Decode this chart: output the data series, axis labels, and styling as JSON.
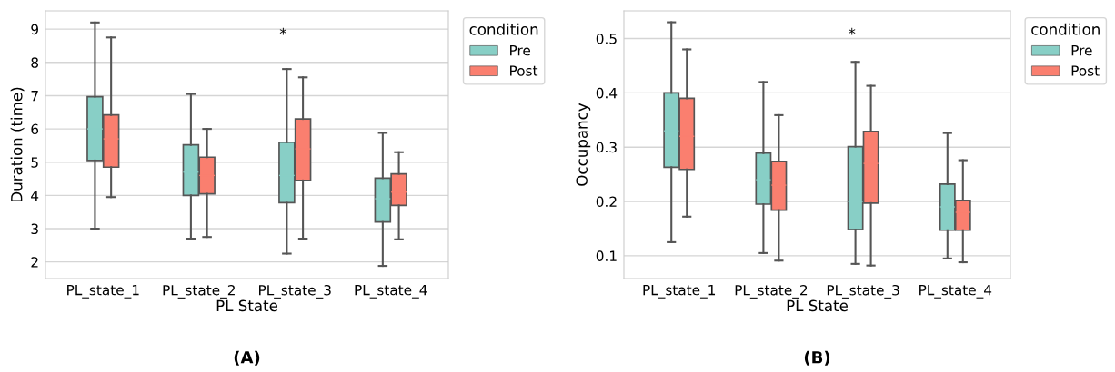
{
  "chart_data": [
    {
      "type": "box",
      "xlabel": "PL State",
      "ylabel": "Duration (time)",
      "categories": [
        "PL_state_1",
        "PL_state_2",
        "PL_state_3",
        "PL_state_4"
      ],
      "legend_title": "condition",
      "legend": "top right",
      "grid": "y",
      "ylim": [
        1.5,
        9.55
      ],
      "yticks": [
        2,
        3,
        4,
        5,
        6,
        7,
        8,
        9
      ],
      "series": [
        {
          "name": "Pre",
          "color": "#88cfc6",
          "boxes": [
            {
              "low": 3.0,
              "q1": 5.05,
              "median": 6.0,
              "q3": 6.97,
              "high": 9.2
            },
            {
              "low": 2.7,
              "q1": 4.0,
              "median": 4.7,
              "q3": 5.52,
              "high": 7.05
            },
            {
              "low": 2.25,
              "q1": 3.78,
              "median": 4.6,
              "q3": 5.6,
              "high": 7.8
            },
            {
              "low": 1.88,
              "q1": 3.2,
              "median": 3.9,
              "q3": 4.52,
              "high": 5.88
            }
          ]
        },
        {
          "name": "Post",
          "color": "#fa7f6f",
          "boxes": [
            {
              "low": 3.95,
              "q1": 4.85,
              "median": 5.7,
              "q3": 6.42,
              "high": 8.75
            },
            {
              "low": 2.75,
              "q1": 4.05,
              "median": 4.6,
              "q3": 5.15,
              "high": 6.0
            },
            {
              "low": 2.7,
              "q1": 4.45,
              "median": 5.4,
              "q3": 6.3,
              "high": 7.55
            },
            {
              "low": 2.68,
              "q1": 3.7,
              "median": 4.1,
              "q3": 4.65,
              "high": 5.3
            }
          ]
        }
      ],
      "annotations": [
        "*",
        "(A)"
      ]
    },
    {
      "type": "box",
      "xlabel": "PL State",
      "ylabel": "Occupancy",
      "categories": [
        "PL_state_1",
        "PL_state_2",
        "PL_state_3",
        "PL_state_4"
      ],
      "legend_title": "condition",
      "legend": "top right",
      "grid": "y",
      "ylim": [
        0.058,
        0.551
      ],
      "yticks": [
        0.1,
        0.2,
        0.3,
        0.4,
        0.5
      ],
      "series": [
        {
          "name": "Pre",
          "color": "#88cfc6",
          "boxes": [
            {
              "low": 0.125,
              "q1": 0.263,
              "median": 0.33,
              "q3": 0.4,
              "high": 0.53
            },
            {
              "low": 0.105,
              "q1": 0.195,
              "median": 0.24,
              "q3": 0.289,
              "high": 0.42
            },
            {
              "low": 0.085,
              "q1": 0.148,
              "median": 0.2,
              "q3": 0.301,
              "high": 0.457
            },
            {
              "low": 0.095,
              "q1": 0.147,
              "median": 0.19,
              "q3": 0.232,
              "high": 0.326
            }
          ]
        },
        {
          "name": "Post",
          "color": "#fa7f6f",
          "boxes": [
            {
              "low": 0.172,
              "q1": 0.259,
              "median": 0.32,
              "q3": 0.39,
              "high": 0.48
            },
            {
              "low": 0.091,
              "q1": 0.184,
              "median": 0.23,
              "q3": 0.274,
              "high": 0.359
            },
            {
              "low": 0.082,
              "q1": 0.197,
              "median": 0.27,
              "q3": 0.329,
              "high": 0.413
            },
            {
              "low": 0.088,
              "q1": 0.147,
              "median": 0.18,
              "q3": 0.202,
              "high": 0.276
            }
          ]
        }
      ],
      "annotations": [
        "*",
        "(B)"
      ]
    }
  ]
}
